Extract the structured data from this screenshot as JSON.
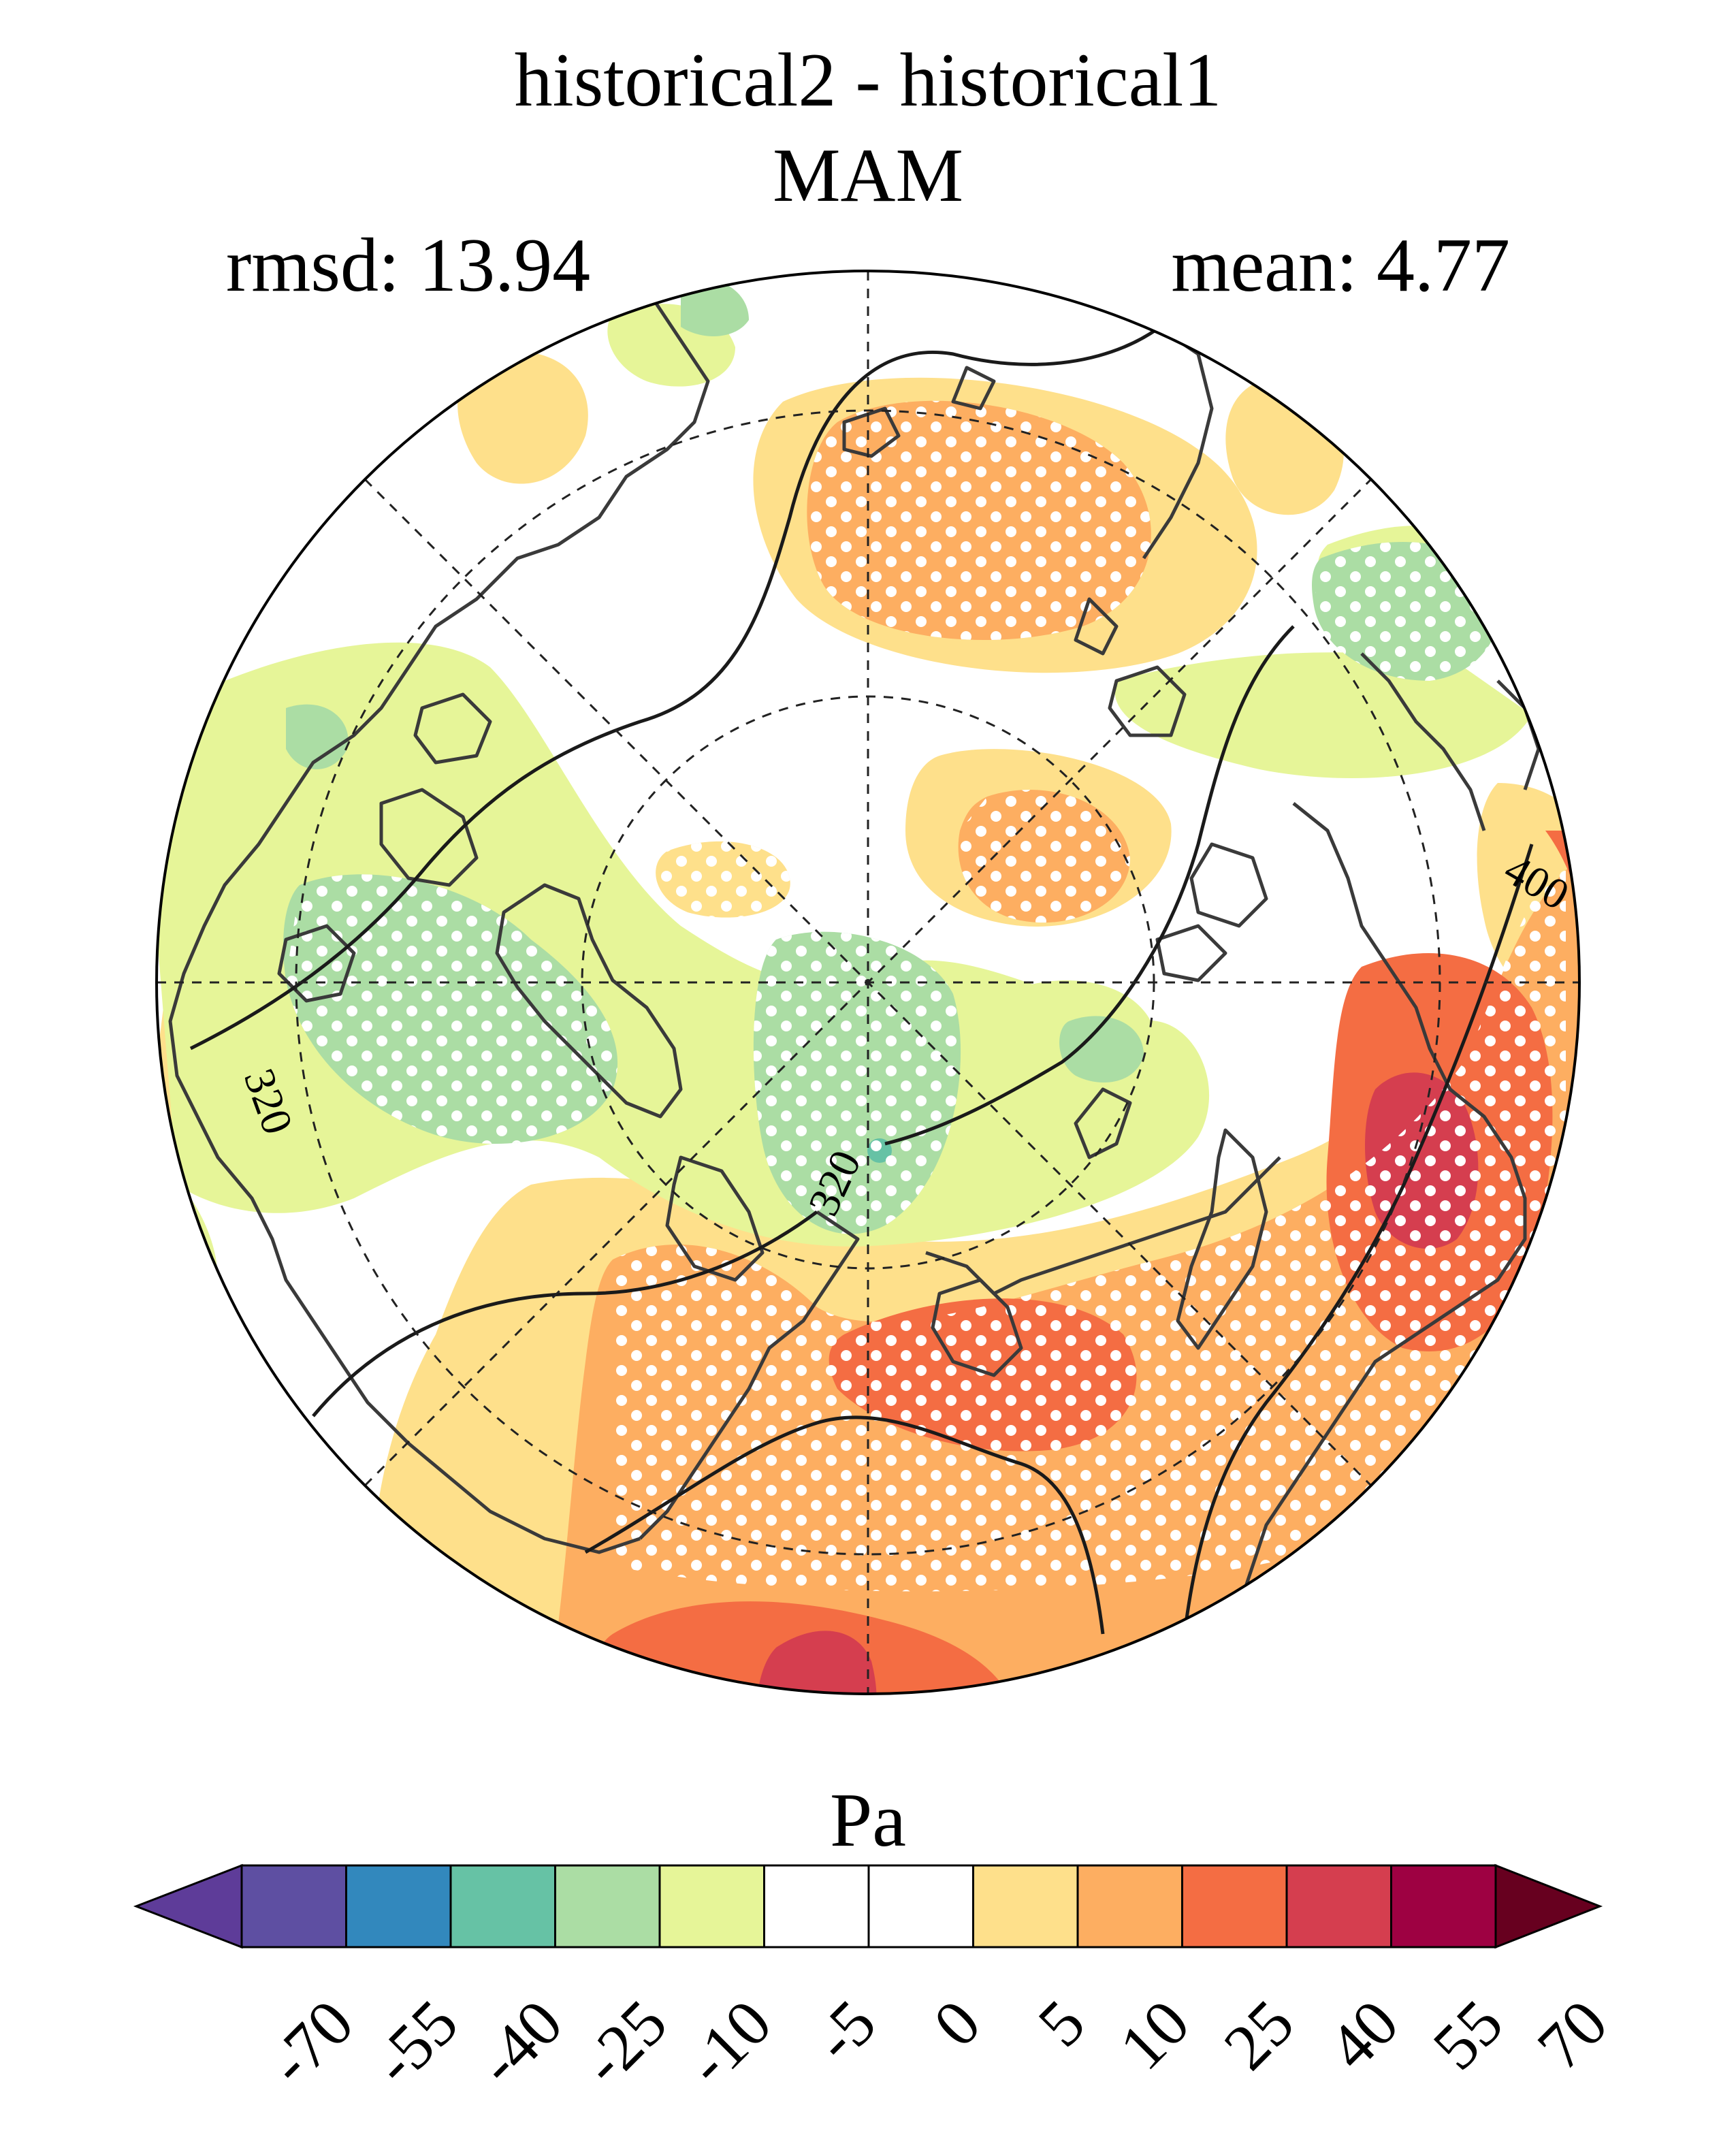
{
  "figure": {
    "title_line1": "historical2 - historical1",
    "title_line2": "MAM",
    "rmsd_label": "rmsd: 13.94",
    "mean_label": "mean: 4.77",
    "units": "Pa"
  },
  "map": {
    "projection": "north-polar-stereographic",
    "contour_labels": [
      "400",
      "320",
      "320"
    ],
    "stippling": "significant regions marked with white dots"
  },
  "colorbar": {
    "tick_labels": [
      "-70",
      "-55",
      "-40",
      "-25",
      "-10",
      "-5",
      "0",
      "5",
      "10",
      "25",
      "40",
      "55",
      "70"
    ],
    "colors": [
      "#5e3c99",
      "#5e4fa2",
      "#3288bd",
      "#66c2a5",
      "#abdda4",
      "#e6f598",
      "#ffffff",
      "#ffffff",
      "#fee08b",
      "#fdae61",
      "#f46d43",
      "#d53e4f",
      "#9e0142",
      "#67001f"
    ]
  }
}
